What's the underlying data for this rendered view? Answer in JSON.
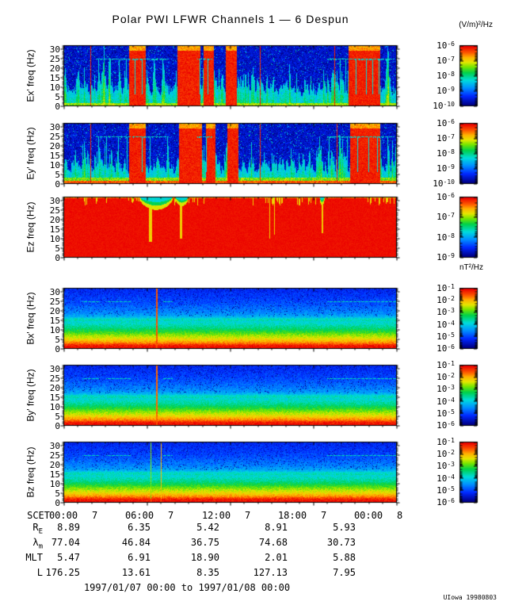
{
  "header": {
    "title": "Polar PWI LFWR Channels 1 — 6 Despun",
    "e_units": "(V/m)²/Hz",
    "b_units": "nT²/Hz"
  },
  "xaxis": {
    "scet_label": "SCET",
    "ticks": [
      {
        "time": "00:00",
        "day": "7"
      },
      {
        "time": "06:00",
        "day": "7"
      },
      {
        "time": "12:00",
        "day": "7"
      },
      {
        "time": "18:00",
        "day": "7"
      },
      {
        "time": "00:00",
        "day": "8"
      }
    ]
  },
  "info_rows": [
    {
      "label_main": "R",
      "label_sub": "E",
      "values": [
        "8.89",
        "6.35",
        "5.42",
        "8.91",
        "5.93"
      ]
    },
    {
      "label_main": "λ",
      "label_sub": "m",
      "values": [
        "77.04",
        "46.84",
        "36.75",
        "74.68",
        "30.73"
      ]
    },
    {
      "label_main": "MLT",
      "label_sub": "",
      "values": [
        "5.47",
        "6.91",
        "18.90",
        "2.01",
        "5.88"
      ]
    },
    {
      "label_main": "L",
      "label_sub": "",
      "values": [
        "176.25",
        "13.61",
        "8.35",
        "127.13",
        "7.95"
      ]
    }
  ],
  "footer": {
    "date_range": "1997/01/07 00:00 to 1997/01/08 00:00",
    "credit": "UIowa 19980803"
  },
  "colors": {
    "background": "#ffffff",
    "text": "#000000",
    "frame": "#000000",
    "colormap_stops": [
      [
        0.0,
        "#000085"
      ],
      [
        0.15,
        "#0028ff"
      ],
      [
        0.3,
        "#0096ff"
      ],
      [
        0.42,
        "#00dcdc"
      ],
      [
        0.55,
        "#00d24b"
      ],
      [
        0.65,
        "#78e600"
      ],
      [
        0.73,
        "#e6e600"
      ],
      [
        0.81,
        "#ffb400"
      ],
      [
        0.89,
        "#ff5a00"
      ],
      [
        1.0,
        "#eb0000"
      ]
    ]
  },
  "chart_data": [
    {
      "type": "heatmap",
      "id": "ex",
      "ylabel": "Ex' freq (Hz)",
      "ylim": [
        0,
        32
      ],
      "yticks": [
        0,
        5,
        10,
        15,
        20,
        25,
        30
      ],
      "x_hours": [
        0,
        24
      ],
      "xticks_hours": [
        0,
        6,
        12,
        18,
        24
      ],
      "value_units": "(V/m)²/Hz",
      "colorbar_exponents": [
        -6,
        -7,
        -8,
        -9,
        -10
      ],
      "style": "E",
      "seed": 11,
      "features": {
        "burst_regions": [
          [
            0.195,
            0.245
          ],
          [
            0.34,
            0.41
          ],
          [
            0.42,
            0.45
          ],
          [
            0.485,
            0.52
          ],
          [
            0.855,
            0.95
          ]
        ],
        "dash_25hz": [
          [
            0.095,
            0.2
          ],
          [
            0.205,
            0.315
          ],
          [
            0.4,
            0.445
          ],
          [
            0.79,
            0.995
          ]
        ],
        "thin_red_lines": [
          0.078,
          0.59,
          0.815
        ],
        "bottom_thick": false
      }
    },
    {
      "type": "heatmap",
      "id": "ey",
      "ylabel": "Ey' freq (Hz)",
      "ylim": [
        0,
        32
      ],
      "yticks": [
        0,
        5,
        10,
        15,
        20,
        25,
        30
      ],
      "x_hours": [
        0,
        24
      ],
      "xticks_hours": [
        0,
        6,
        12,
        18,
        24
      ],
      "value_units": "(V/m)²/Hz",
      "colorbar_exponents": [
        -6,
        -7,
        -8,
        -9,
        -10
      ],
      "style": "E",
      "seed": 23,
      "features": {
        "burst_regions": [
          [
            0.195,
            0.245
          ],
          [
            0.345,
            0.415
          ],
          [
            0.425,
            0.455
          ],
          [
            0.49,
            0.525
          ],
          [
            0.86,
            0.95
          ]
        ],
        "dash_25hz": [
          [
            0.095,
            0.2
          ],
          [
            0.205,
            0.315
          ],
          [
            0.4,
            0.445
          ],
          [
            0.79,
            0.995
          ]
        ],
        "thin_red_lines": [
          0.078,
          0.59,
          0.82
        ],
        "bottom_thick": true
      }
    },
    {
      "type": "heatmap",
      "id": "ez",
      "ylabel": "Ez freq (Hz)",
      "ylim": [
        0,
        32
      ],
      "yticks": [
        0,
        5,
        10,
        15,
        20,
        25,
        30
      ],
      "x_hours": [
        0,
        24
      ],
      "xticks_hours": [
        0,
        6,
        12,
        18,
        24
      ],
      "value_units": "(V/m)²/Hz",
      "colorbar_exponents": [
        -6,
        -7,
        -8,
        -9
      ],
      "style": "EZ",
      "seed": 37,
      "features": {
        "dips": [
          {
            "t0": 0.228,
            "t1": 0.325,
            "depth": 5.5
          },
          {
            "t0": 0.335,
            "t1": 0.372,
            "depth": 3.5
          },
          {
            "t0": 0.769,
            "t1": 0.783,
            "depth": 3.0
          }
        ],
        "columns": [
          {
            "t": 0.258,
            "f": 8,
            "w": 4
          },
          {
            "t": 0.352,
            "f": 10,
            "w": 3
          },
          {
            "t": 0.618,
            "f": 10,
            "w": 1
          },
          {
            "t": 0.633,
            "f": 12,
            "w": 1
          },
          {
            "t": 0.776,
            "f": 13,
            "w": 2
          }
        ],
        "top_spike_regions": [
          [
            0.04,
            0.15
          ],
          [
            0.19,
            0.228
          ],
          [
            0.325,
            0.43
          ],
          [
            0.56,
            0.66
          ],
          [
            0.7,
            0.78
          ],
          [
            0.9,
            0.995
          ]
        ]
      }
    },
    {
      "type": "heatmap",
      "id": "bx",
      "ylabel": "Bx' freq (Hz)",
      "ylim": [
        0,
        32
      ],
      "yticks": [
        0,
        5,
        10,
        15,
        20,
        25,
        30
      ],
      "x_hours": [
        0,
        24
      ],
      "xticks_hours": [
        0,
        6,
        12,
        18,
        24
      ],
      "value_units": "nT²/Hz",
      "colorbar_exponents": [
        -1,
        -2,
        -3,
        -4,
        -5,
        -6
      ],
      "style": "B",
      "seed": 53,
      "features": {
        "dash_25hz": [
          [
            0.053,
            0.105
          ],
          [
            0.125,
            0.2
          ],
          [
            0.297,
            0.325
          ],
          [
            0.79,
            0.998
          ]
        ],
        "vlines": [
          {
            "t": 0.278,
            "v": 0.9,
            "w": 2
          }
        ]
      }
    },
    {
      "type": "heatmap",
      "id": "by",
      "ylabel": "By' freq (Hz)",
      "ylim": [
        0,
        32
      ],
      "yticks": [
        0,
        5,
        10,
        15,
        20,
        25,
        30
      ],
      "x_hours": [
        0,
        24
      ],
      "xticks_hours": [
        0,
        6,
        12,
        18,
        24
      ],
      "value_units": "nT²/Hz",
      "colorbar_exponents": [
        -1,
        -2,
        -3,
        -4,
        -5,
        -6
      ],
      "style": "B",
      "seed": 67,
      "features": {
        "dash_25hz": [
          [
            0.053,
            0.105
          ],
          [
            0.125,
            0.2
          ],
          [
            0.297,
            0.325
          ],
          [
            0.79,
            0.998
          ]
        ],
        "vlines": [
          {
            "t": 0.278,
            "v": 0.88,
            "w": 2
          }
        ]
      }
    },
    {
      "type": "heatmap",
      "id": "bz",
      "ylabel": "Bz freq (Hz)",
      "ylim": [
        0,
        32
      ],
      "yticks": [
        0,
        5,
        10,
        15,
        20,
        25,
        30
      ],
      "x_hours": [
        0,
        24
      ],
      "xticks_hours": [
        0,
        6,
        12,
        18,
        24
      ],
      "value_units": "nT²/Hz",
      "colorbar_exponents": [
        -1,
        -2,
        -3,
        -4,
        -5,
        -6
      ],
      "style": "B",
      "seed": 79,
      "features": {
        "dash_25hz": [
          [
            0.053,
            0.105
          ],
          [
            0.125,
            0.2
          ],
          [
            0.297,
            0.325
          ],
          [
            0.79,
            0.998
          ]
        ],
        "vlines": [
          {
            "t": 0.259,
            "v": 0.66,
            "w": 1
          },
          {
            "t": 0.292,
            "v": 0.8,
            "w": 1
          }
        ]
      }
    }
  ]
}
